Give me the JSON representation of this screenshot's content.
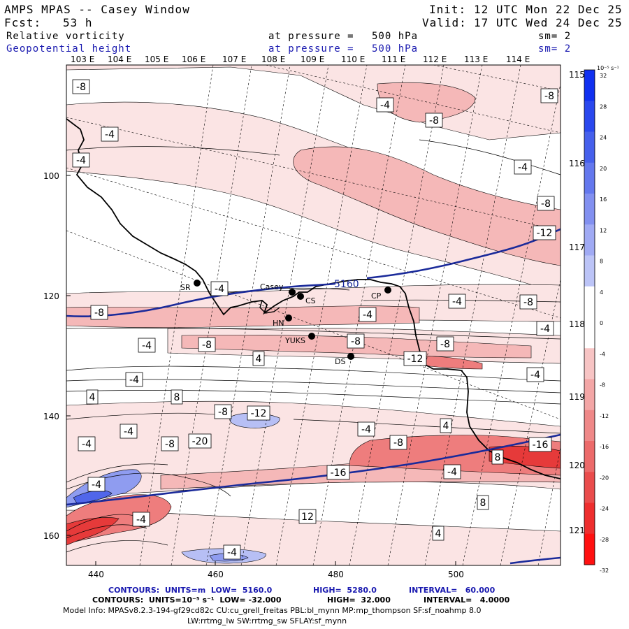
{
  "header": {
    "app_title": "AMPS MPAS -- Casey Window",
    "fcst_label": "Fcst:",
    "fcst_value": "53 h",
    "init_label": "Init:",
    "init_value": "12 UTC Mon 22 Dec 25",
    "valid_label": "Valid:",
    "valid_value": "17 UTC Wed 24 Dec 25"
  },
  "fields": [
    {
      "name": "Relative vorticity",
      "pressure_text": "at pressure =",
      "pressure_value": "500 hPa",
      "sm_text": "sm= 2"
    },
    {
      "name": "Geopotential height",
      "pressure_text": "at pressure =",
      "pressure_value": "500 hPa",
      "sm_text": "sm= 2"
    }
  ],
  "top_lon_labels": [
    "103 E",
    "104 E",
    "105 E",
    "106 E",
    "107 E",
    "108 E",
    "109 E",
    "110 E",
    "111 E",
    "112 E",
    "113 E",
    "114 E"
  ],
  "right_lon_labels": [
    "115 E",
    "116 E",
    "117 E",
    "118 E",
    "119 E",
    "120 E",
    "121 E"
  ],
  "y_axis_labels": [
    "100",
    "120",
    "140",
    "160"
  ],
  "x_axis_labels": [
    "440",
    "460",
    "480",
    "500"
  ],
  "colorbar": {
    "unit": "10⁻⁵ s⁻¹",
    "ticks": [
      "32",
      "28",
      "24",
      "20",
      "16",
      "12",
      "8",
      "4",
      "0",
      "-4",
      "-8",
      "-12",
      "-16",
      "-20",
      "-24",
      "-28",
      "-32"
    ]
  },
  "stations": [
    {
      "label": "SR"
    },
    {
      "label": "Casey"
    },
    {
      "label": "CS"
    },
    {
      "label": "CP"
    },
    {
      "label": "HN"
    },
    {
      "label": "YUKS"
    },
    {
      "label": "DS"
    }
  ],
  "contour_labels": [
    "-8",
    "-8",
    "-4",
    "-8",
    "-4",
    "-4",
    "-4",
    "-8",
    "-12",
    "-4",
    "-4",
    "-8",
    "-4",
    "-8",
    "-4",
    "-8",
    "-8",
    "-12",
    "-8",
    "-4",
    "4",
    "-4",
    "-4",
    "4",
    "8",
    "-8",
    "-12",
    "-4",
    "-4",
    "4",
    "-4",
    "-8",
    "-20",
    "-16",
    "-8",
    "8",
    "-16",
    "-4",
    "-4",
    "-4",
    "12",
    "8",
    "4",
    "-4"
  ],
  "height_label": "5160",
  "footer": {
    "line1_a": "CONTOURS:  UNITS=m  LOW=  5160.0",
    "line1_b": "HIGH=  5280.0",
    "line1_c": "INTERVAL=   60.000",
    "line2_a": "CONTOURS:  UNITS=10⁻⁵ s⁻¹  LOW= -32.000",
    "line2_b": "HIGH=  32.000",
    "line2_c": "INTERVAL=   4.0000",
    "line3": "Model Info: MPASv8.2.3-194-gf29cd82c CU:cu_grell_freitas PBL:bl_mynn MP:mp_thompson SF:sf_noahmp 8.0",
    "line4": "LW:rrtmg_lw SW:rrtmg_sw SFLAY:sf_mynn"
  },
  "colors": {
    "height_contour": "#1a2a9a",
    "positive_max": "#1030f0",
    "negative_max": "#ff1010"
  }
}
